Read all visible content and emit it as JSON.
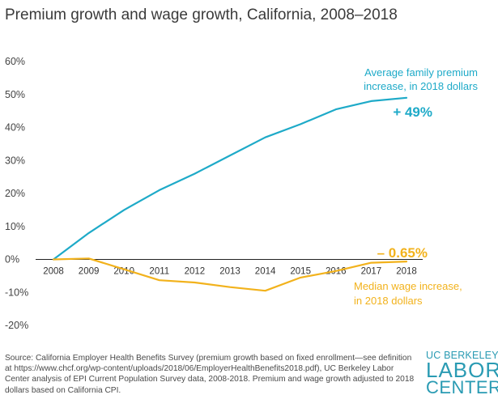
{
  "title": "Premium growth and wage growth, California, 2008–2018",
  "chart_data": {
    "type": "line",
    "title": "Premium growth and wage growth, California, 2008–2018",
    "xlabel": "",
    "ylabel": "",
    "x": [
      2008,
      2009,
      2010,
      2011,
      2012,
      2013,
      2014,
      2015,
      2016,
      2017,
      2018
    ],
    "ylim": [
      -20,
      60
    ],
    "yticks": [
      -20,
      -10,
      0,
      10,
      20,
      30,
      40,
      50,
      60
    ],
    "ytick_labels": [
      "-20%",
      "-10%",
      "0%",
      "10%",
      "20%",
      "30%",
      "40%",
      "50%",
      "60%"
    ],
    "xtick_labels": [
      "2008",
      "2009",
      "2010",
      "2011",
      "2012",
      "2013",
      "2014",
      "2015",
      "2016",
      "2017",
      "2018"
    ],
    "series": [
      {
        "name": "Average family premium increase, in 2018 dollars",
        "label_lines": [
          "Average family premium",
          "increase, in 2018 dollars"
        ],
        "end_label": "+ 49%",
        "color": "#1eaac8",
        "values": [
          0,
          8,
          15,
          21,
          26,
          31.5,
          37,
          41,
          45.5,
          48,
          49
        ]
      },
      {
        "name": "Median wage increase, in 2018 dollars",
        "label_lines": [
          "Median wage increase,",
          "in 2018 dollars"
        ],
        "end_label": "– 0.65%",
        "color": "#f2b21c",
        "values": [
          0,
          0.3,
          -3,
          -6.3,
          -7,
          -8.4,
          -9.5,
          -5.5,
          -3.5,
          -1,
          -0.65
        ]
      }
    ]
  },
  "source": "Source: California Employer Health Benefits Survey (premium growth based on fixed enrollment—see definition at https://www.chcf.org/wp-content/uploads/2018/06/EmployerHealthBenefits2018.pdf), UC Berkeley Labor Center analysis of EPI Current Population Survey data, 2008-2018. Premium and wage growth adjusted to 2018 dollars based on California CPI.",
  "logo": {
    "line1": "UC BERKELEY",
    "line2": "LABOR",
    "line3": "CENTER"
  }
}
